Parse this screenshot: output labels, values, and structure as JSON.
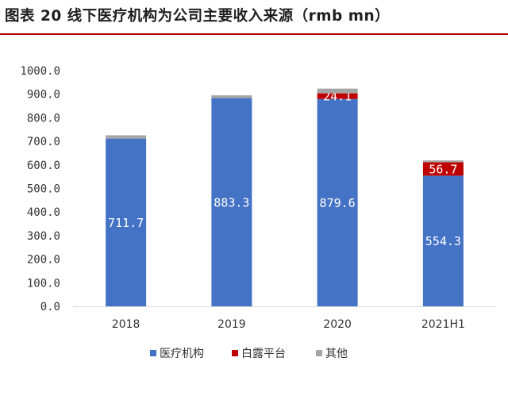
{
  "header": {
    "title": "图表 20 线下医疗机构为公司主要收入来源（rmb mn）"
  },
  "chart_data": {
    "type": "bar",
    "stacked": true,
    "title": "图表 20 线下医疗机构为公司主要收入来源（rmb mn）",
    "categories": [
      "2018",
      "2019",
      "2020",
      "2021H1"
    ],
    "series": [
      {
        "name": "医疗机构",
        "color": "#4472c4",
        "values": [
          711.7,
          883.3,
          879.6,
          554.3
        ],
        "labels": [
          "711.7",
          "883.3",
          "879.6",
          "554.3"
        ]
      },
      {
        "name": "白露平台",
        "color": "#c00000",
        "values": [
          0,
          0,
          24.1,
          56.7
        ],
        "labels": [
          "",
          "",
          "24.1",
          "56.7"
        ]
      },
      {
        "name": "其他",
        "color": "#a5a5a5",
        "values": [
          14,
          12,
          20,
          8
        ],
        "labels": [
          "",
          "",
          "",
          ""
        ]
      }
    ],
    "yticks": [
      "0.0",
      "100.0",
      "200.0",
      "300.0",
      "400.0",
      "500.0",
      "600.0",
      "700.0",
      "800.0",
      "900.0",
      "1000.0"
    ],
    "ylim": [
      0,
      1000
    ],
    "grid": false,
    "legend_position": "bottom"
  }
}
